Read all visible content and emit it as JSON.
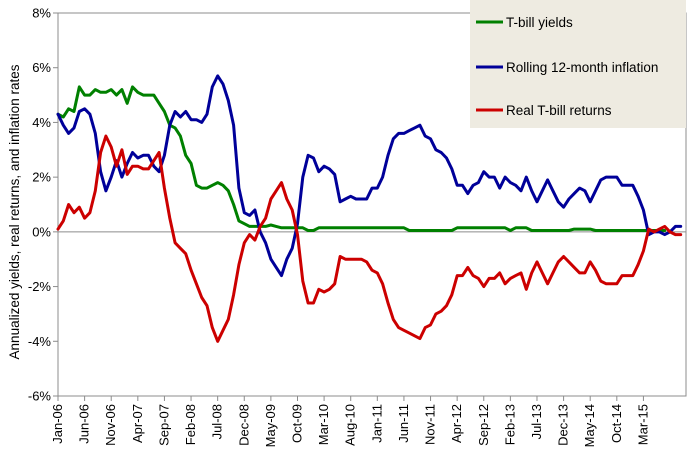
{
  "chart_data": {
    "type": "line",
    "title": "",
    "xlabel": "",
    "ylabel": "Annualized yields, real returns, and inflation rates",
    "ylim": [
      -6,
      8
    ],
    "ytick_step": 2,
    "ytick_labels": [
      "-6%",
      "-4%",
      "-2%",
      "0%",
      "2%",
      "4%",
      "6%",
      "8%"
    ],
    "x_range": [
      0,
      118
    ],
    "x_ticks": [
      {
        "index": 0,
        "label": "Jan-06"
      },
      {
        "index": 5,
        "label": "Jun-06"
      },
      {
        "index": 10,
        "label": "Nov-06"
      },
      {
        "index": 15,
        "label": "Apr-07"
      },
      {
        "index": 20,
        "label": "Sep-07"
      },
      {
        "index": 25,
        "label": "Feb-08"
      },
      {
        "index": 30,
        "label": "Jul-08"
      },
      {
        "index": 35,
        "label": "Dec-08"
      },
      {
        "index": 40,
        "label": "May-09"
      },
      {
        "index": 45,
        "label": "Oct-09"
      },
      {
        "index": 50,
        "label": "Mar-10"
      },
      {
        "index": 55,
        "label": "Aug-10"
      },
      {
        "index": 60,
        "label": "Jan-11"
      },
      {
        "index": 65,
        "label": "Jun-11"
      },
      {
        "index": 70,
        "label": "Nov-11"
      },
      {
        "index": 75,
        "label": "Apr-12"
      },
      {
        "index": 80,
        "label": "Sep-12"
      },
      {
        "index": 85,
        "label": "Feb-13"
      },
      {
        "index": 90,
        "label": "Jul-13"
      },
      {
        "index": 95,
        "label": "Dec-13"
      },
      {
        "index": 100,
        "label": "May-14"
      },
      {
        "index": 105,
        "label": "Oct-14"
      },
      {
        "index": 110,
        "label": "Mar-15"
      }
    ],
    "legend": {
      "position": "top-right"
    },
    "series": [
      {
        "name": "T-bill yields",
        "color": "#008000",
        "points": [
          [
            0,
            4.3
          ],
          [
            1,
            4.2
          ],
          [
            2,
            4.5
          ],
          [
            3,
            4.4
          ],
          [
            4,
            5.3
          ],
          [
            5,
            5.0
          ],
          [
            6,
            5.0
          ],
          [
            7,
            5.2
          ],
          [
            8,
            5.1
          ],
          [
            9,
            5.1
          ],
          [
            10,
            5.2
          ],
          [
            11,
            5.0
          ],
          [
            12,
            5.2
          ],
          [
            13,
            4.7
          ],
          [
            14,
            5.3
          ],
          [
            15,
            5.1
          ],
          [
            16,
            5.0
          ],
          [
            17,
            5.0
          ],
          [
            18,
            5.0
          ],
          [
            19,
            4.7
          ],
          [
            20,
            4.4
          ],
          [
            21,
            3.9
          ],
          [
            22,
            3.8
          ],
          [
            23,
            3.5
          ],
          [
            24,
            2.8
          ],
          [
            25,
            2.5
          ],
          [
            26,
            1.7
          ],
          [
            27,
            1.6
          ],
          [
            28,
            1.6
          ],
          [
            29,
            1.7
          ],
          [
            30,
            1.8
          ],
          [
            31,
            1.7
          ],
          [
            32,
            1.5
          ],
          [
            33,
            1.0
          ],
          [
            34,
            0.4
          ],
          [
            35,
            0.3
          ],
          [
            36,
            0.2
          ],
          [
            37,
            0.2
          ],
          [
            38,
            0.2
          ],
          [
            39,
            0.2
          ],
          [
            40,
            0.25
          ],
          [
            41,
            0.2
          ],
          [
            42,
            0.15
          ],
          [
            43,
            0.15
          ],
          [
            44,
            0.15
          ],
          [
            45,
            0.15
          ],
          [
            46,
            0.15
          ],
          [
            47,
            0.05
          ],
          [
            48,
            0.05
          ],
          [
            49,
            0.15
          ],
          [
            50,
            0.15
          ],
          [
            55,
            0.15
          ],
          [
            60,
            0.15
          ],
          [
            65,
            0.15
          ],
          [
            66,
            0.05
          ],
          [
            74,
            0.05
          ],
          [
            75,
            0.15
          ],
          [
            84,
            0.15
          ],
          [
            85,
            0.05
          ],
          [
            86,
            0.15
          ],
          [
            88,
            0.15
          ],
          [
            89,
            0.05
          ],
          [
            96,
            0.05
          ],
          [
            97,
            0.1
          ],
          [
            100,
            0.1
          ],
          [
            101,
            0.05
          ],
          [
            114,
            0.05
          ]
        ]
      },
      {
        "name": "Rolling 12-month inflation",
        "color": "#000099",
        "points": [
          [
            0,
            4.3
          ],
          [
            1,
            3.9
          ],
          [
            2,
            3.6
          ],
          [
            3,
            3.8
          ],
          [
            4,
            4.4
          ],
          [
            5,
            4.5
          ],
          [
            6,
            4.3
          ],
          [
            7,
            3.6
          ],
          [
            8,
            2.2
          ],
          [
            9,
            1.5
          ],
          [
            10,
            2.0
          ],
          [
            11,
            2.6
          ],
          [
            12,
            2.0
          ],
          [
            13,
            2.5
          ],
          [
            14,
            2.9
          ],
          [
            15,
            2.7
          ],
          [
            16,
            2.8
          ],
          [
            17,
            2.8
          ],
          [
            18,
            2.4
          ],
          [
            19,
            2.2
          ],
          [
            20,
            2.8
          ],
          [
            21,
            3.9
          ],
          [
            22,
            4.4
          ],
          [
            23,
            4.2
          ],
          [
            24,
            4.4
          ],
          [
            25,
            4.1
          ],
          [
            26,
            4.1
          ],
          [
            27,
            4.0
          ],
          [
            28,
            4.3
          ],
          [
            29,
            5.3
          ],
          [
            30,
            5.7
          ],
          [
            31,
            5.4
          ],
          [
            32,
            4.8
          ],
          [
            33,
            3.9
          ],
          [
            34,
            1.6
          ],
          [
            35,
            0.7
          ],
          [
            36,
            0.6
          ],
          [
            37,
            0.8
          ],
          [
            38,
            0.0
          ],
          [
            39,
            -0.4
          ],
          [
            40,
            -1.0
          ],
          [
            41,
            -1.3
          ],
          [
            42,
            -1.6
          ],
          [
            43,
            -1.0
          ],
          [
            44,
            -0.6
          ],
          [
            45,
            0.3
          ],
          [
            46,
            2.0
          ],
          [
            47,
            2.8
          ],
          [
            48,
            2.7
          ],
          [
            49,
            2.2
          ],
          [
            50,
            2.4
          ],
          [
            51,
            2.3
          ],
          [
            52,
            2.1
          ],
          [
            53,
            1.1
          ],
          [
            54,
            1.2
          ],
          [
            55,
            1.3
          ],
          [
            56,
            1.2
          ],
          [
            57,
            1.2
          ],
          [
            58,
            1.2
          ],
          [
            59,
            1.6
          ],
          [
            60,
            1.6
          ],
          [
            61,
            2.0
          ],
          [
            62,
            2.8
          ],
          [
            63,
            3.4
          ],
          [
            64,
            3.6
          ],
          [
            65,
            3.6
          ],
          [
            66,
            3.7
          ],
          [
            67,
            3.8
          ],
          [
            68,
            3.9
          ],
          [
            69,
            3.5
          ],
          [
            70,
            3.4
          ],
          [
            71,
            3.0
          ],
          [
            72,
            2.9
          ],
          [
            73,
            2.7
          ],
          [
            74,
            2.3
          ],
          [
            75,
            1.7
          ],
          [
            76,
            1.7
          ],
          [
            77,
            1.4
          ],
          [
            78,
            1.7
          ],
          [
            79,
            1.8
          ],
          [
            80,
            2.2
          ],
          [
            81,
            2.0
          ],
          [
            82,
            2.0
          ],
          [
            83,
            1.6
          ],
          [
            84,
            2.0
          ],
          [
            85,
            1.8
          ],
          [
            86,
            1.7
          ],
          [
            87,
            1.5
          ],
          [
            88,
            2.0
          ],
          [
            89,
            1.5
          ],
          [
            90,
            1.1
          ],
          [
            91,
            1.5
          ],
          [
            92,
            1.9
          ],
          [
            93,
            1.5
          ],
          [
            94,
            1.1
          ],
          [
            95,
            0.9
          ],
          [
            96,
            1.2
          ],
          [
            97,
            1.4
          ],
          [
            98,
            1.6
          ],
          [
            99,
            1.5
          ],
          [
            100,
            1.1
          ],
          [
            101,
            1.5
          ],
          [
            102,
            1.9
          ],
          [
            103,
            2.0
          ],
          [
            104,
            2.0
          ],
          [
            105,
            2.0
          ],
          [
            106,
            1.7
          ],
          [
            107,
            1.7
          ],
          [
            108,
            1.7
          ],
          [
            109,
            1.3
          ],
          [
            110,
            0.8
          ],
          [
            111,
            -0.1
          ],
          [
            112,
            0.0
          ],
          [
            113,
            0.0
          ],
          [
            114,
            -0.1
          ],
          [
            115,
            0.0
          ],
          [
            116,
            0.2
          ],
          [
            117,
            0.2
          ]
        ]
      },
      {
        "name": "Real T-bill returns",
        "color": "#cc0000",
        "points": [
          [
            0,
            0.1
          ],
          [
            1,
            0.4
          ],
          [
            2,
            1.0
          ],
          [
            3,
            0.7
          ],
          [
            4,
            0.9
          ],
          [
            5,
            0.5
          ],
          [
            6,
            0.7
          ],
          [
            7,
            1.5
          ],
          [
            8,
            2.9
          ],
          [
            9,
            3.5
          ],
          [
            10,
            3.1
          ],
          [
            11,
            2.4
          ],
          [
            12,
            3.0
          ],
          [
            13,
            2.1
          ],
          [
            14,
            2.4
          ],
          [
            15,
            2.4
          ],
          [
            16,
            2.3
          ],
          [
            17,
            2.3
          ],
          [
            18,
            2.6
          ],
          [
            19,
            2.9
          ],
          [
            20,
            1.6
          ],
          [
            21,
            0.5
          ],
          [
            22,
            -0.4
          ],
          [
            23,
            -0.6
          ],
          [
            24,
            -0.8
          ],
          [
            25,
            -1.4
          ],
          [
            26,
            -1.9
          ],
          [
            27,
            -2.4
          ],
          [
            28,
            -2.7
          ],
          [
            29,
            -3.5
          ],
          [
            30,
            -4.0
          ],
          [
            31,
            -3.6
          ],
          [
            32,
            -3.2
          ],
          [
            33,
            -2.3
          ],
          [
            34,
            -1.2
          ],
          [
            35,
            -0.4
          ],
          [
            36,
            -0.1
          ],
          [
            37,
            -0.3
          ],
          [
            38,
            0.2
          ],
          [
            39,
            0.5
          ],
          [
            40,
            1.2
          ],
          [
            41,
            1.5
          ],
          [
            42,
            1.8
          ],
          [
            43,
            1.2
          ],
          [
            44,
            0.8
          ],
          [
            45,
            -0.1
          ],
          [
            46,
            -1.8
          ],
          [
            47,
            -2.6
          ],
          [
            48,
            -2.6
          ],
          [
            49,
            -2.1
          ],
          [
            50,
            -2.2
          ],
          [
            51,
            -2.1
          ],
          [
            52,
            -1.9
          ],
          [
            53,
            -0.9
          ],
          [
            54,
            -1.0
          ],
          [
            55,
            -1.0
          ],
          [
            56,
            -1.0
          ],
          [
            57,
            -1.0
          ],
          [
            58,
            -1.1
          ],
          [
            59,
            -1.4
          ],
          [
            60,
            -1.5
          ],
          [
            61,
            -1.9
          ],
          [
            62,
            -2.6
          ],
          [
            63,
            -3.2
          ],
          [
            64,
            -3.5
          ],
          [
            65,
            -3.6
          ],
          [
            66,
            -3.7
          ],
          [
            67,
            -3.8
          ],
          [
            68,
            -3.9
          ],
          [
            69,
            -3.5
          ],
          [
            70,
            -3.4
          ],
          [
            71,
            -3.0
          ],
          [
            72,
            -2.9
          ],
          [
            73,
            -2.7
          ],
          [
            74,
            -2.3
          ],
          [
            75,
            -1.6
          ],
          [
            76,
            -1.6
          ],
          [
            77,
            -1.3
          ],
          [
            78,
            -1.6
          ],
          [
            79,
            -1.7
          ],
          [
            80,
            -2.0
          ],
          [
            81,
            -1.7
          ],
          [
            82,
            -1.7
          ],
          [
            83,
            -1.5
          ],
          [
            84,
            -1.9
          ],
          [
            85,
            -1.7
          ],
          [
            86,
            -1.6
          ],
          [
            87,
            -1.5
          ],
          [
            88,
            -2.1
          ],
          [
            89,
            -1.5
          ],
          [
            90,
            -1.1
          ],
          [
            91,
            -1.5
          ],
          [
            92,
            -1.9
          ],
          [
            93,
            -1.5
          ],
          [
            94,
            -1.1
          ],
          [
            95,
            -0.9
          ],
          [
            96,
            -1.1
          ],
          [
            97,
            -1.3
          ],
          [
            98,
            -1.5
          ],
          [
            99,
            -1.5
          ],
          [
            100,
            -1.1
          ],
          [
            101,
            -1.4
          ],
          [
            102,
            -1.8
          ],
          [
            103,
            -1.9
          ],
          [
            104,
            -1.9
          ],
          [
            105,
            -1.9
          ],
          [
            106,
            -1.6
          ],
          [
            107,
            -1.6
          ],
          [
            108,
            -1.6
          ],
          [
            109,
            -1.2
          ],
          [
            110,
            -0.7
          ],
          [
            111,
            0.1
          ],
          [
            112,
            0.0
          ],
          [
            113,
            0.1
          ],
          [
            114,
            0.2
          ],
          [
            115,
            0.0
          ],
          [
            116,
            -0.1
          ],
          [
            117,
            -0.1
          ]
        ]
      }
    ]
  }
}
